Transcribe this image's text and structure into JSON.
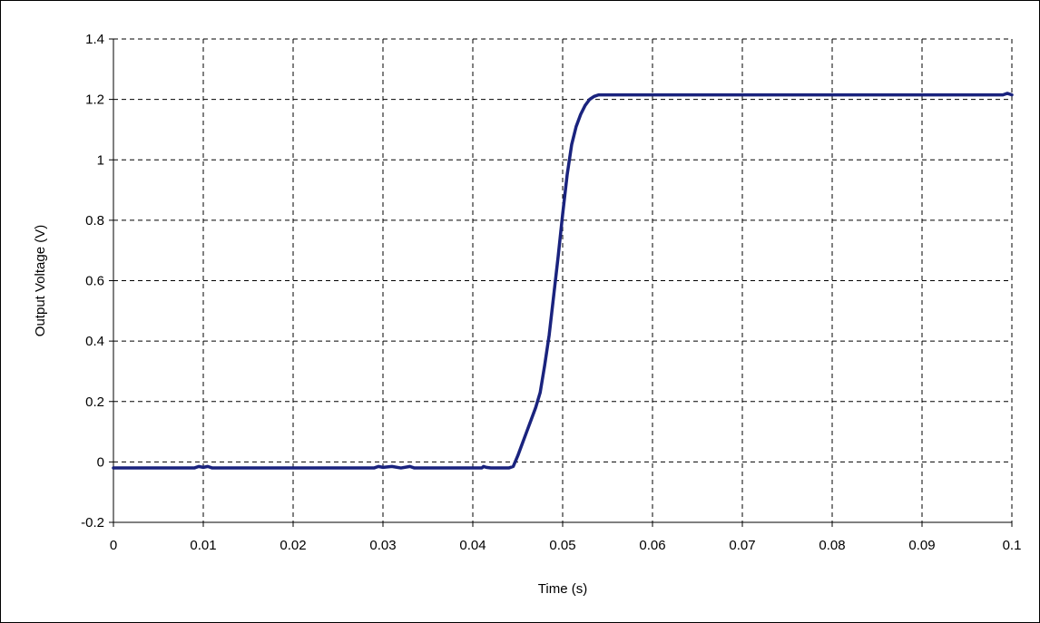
{
  "chart_data": {
    "type": "line",
    "title": "",
    "xlabel": "Time (s)",
    "ylabel": "Output Voltage (V)",
    "xlim": [
      0,
      0.1
    ],
    "ylim": [
      -0.2,
      1.4
    ],
    "x_ticks": [
      0,
      0.01,
      0.02,
      0.03,
      0.04,
      0.05,
      0.06,
      0.07,
      0.08,
      0.09,
      0.1
    ],
    "x_tick_labels": [
      "0",
      "0.01",
      "0.02",
      "0.03",
      "0.04",
      "0.05",
      "0.06",
      "0.07",
      "0.08",
      "0.09",
      "0.1"
    ],
    "y_ticks": [
      -0.2,
      0,
      0.2,
      0.4,
      0.6,
      0.8,
      1,
      1.2,
      1.4
    ],
    "y_tick_labels": [
      "-0.2",
      "0",
      "0.2",
      "0.4",
      "0.6",
      "0.8",
      "1",
      "1.2",
      "1.4"
    ],
    "grid": true,
    "grid_style": "dashed",
    "legend": "none",
    "series": [
      {
        "color": "#1a237e",
        "x": [
          0,
          0.009,
          0.0095,
          0.01,
          0.0105,
          0.011,
          0.012,
          0.029,
          0.0295,
          0.03,
          0.031,
          0.032,
          0.033,
          0.0335,
          0.041,
          0.0412,
          0.0415,
          0.042,
          0.044,
          0.0445,
          0.045,
          0.0455,
          0.046,
          0.0465,
          0.047,
          0.0475,
          0.048,
          0.0485,
          0.049,
          0.0495,
          0.05,
          0.0505,
          0.051,
          0.0515,
          0.052,
          0.0525,
          0.053,
          0.0535,
          0.054,
          0.06,
          0.07,
          0.08,
          0.09,
          0.099,
          0.0995,
          0.1
        ],
        "y": [
          -0.02,
          -0.02,
          -0.015,
          -0.018,
          -0.015,
          -0.02,
          -0.02,
          -0.02,
          -0.015,
          -0.018,
          -0.015,
          -0.02,
          -0.015,
          -0.02,
          -0.02,
          -0.015,
          -0.018,
          -0.02,
          -0.02,
          -0.015,
          0.02,
          0.06,
          0.1,
          0.14,
          0.18,
          0.23,
          0.32,
          0.42,
          0.55,
          0.68,
          0.82,
          0.95,
          1.05,
          1.11,
          1.15,
          1.18,
          1.2,
          1.21,
          1.215,
          1.215,
          1.215,
          1.215,
          1.215,
          1.215,
          1.22,
          1.215
        ]
      }
    ]
  }
}
